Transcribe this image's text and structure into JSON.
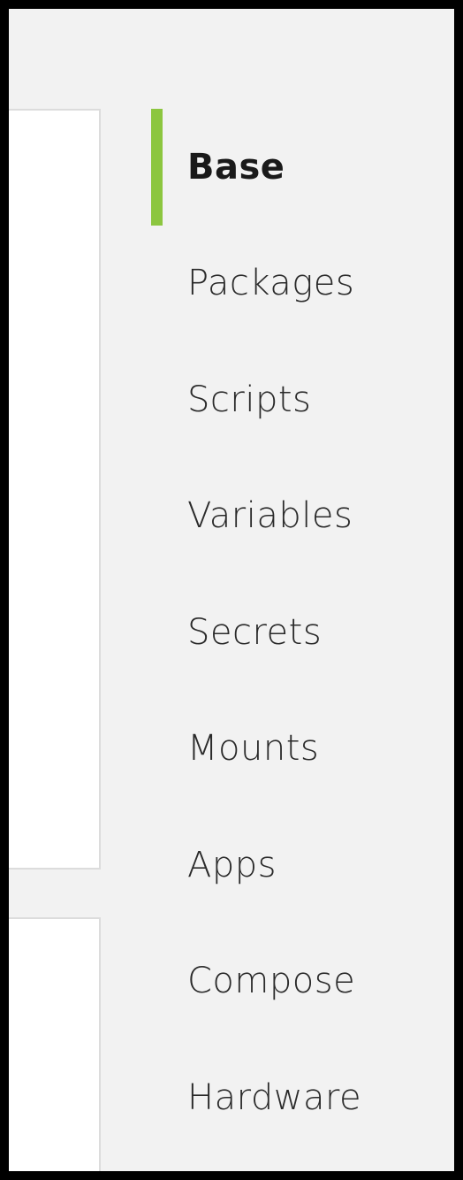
{
  "nav": {
    "accent_color": "#8cc63f",
    "active_index": 0,
    "items": [
      {
        "label": "Base"
      },
      {
        "label": "Packages"
      },
      {
        "label": "Scripts"
      },
      {
        "label": "Variables"
      },
      {
        "label": "Secrets"
      },
      {
        "label": "Mounts"
      },
      {
        "label": "Apps"
      },
      {
        "label": "Compose"
      },
      {
        "label": "Hardware"
      }
    ]
  }
}
